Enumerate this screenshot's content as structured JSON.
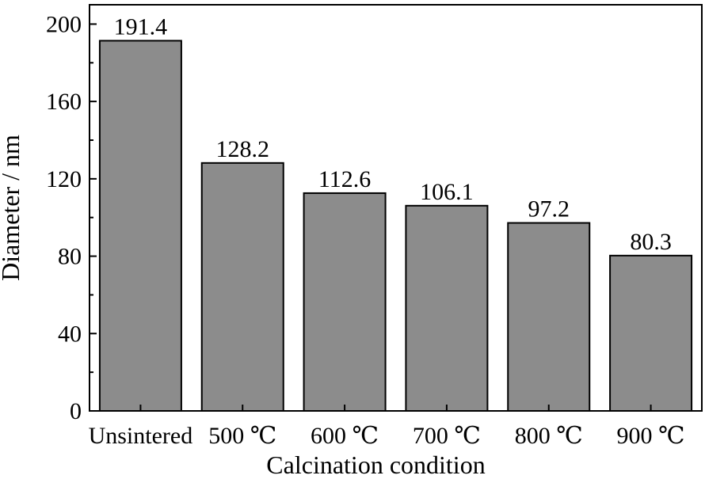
{
  "chart_data": {
    "type": "bar",
    "categories": [
      "Unsintered",
      "500 ℃",
      "600 ℃",
      "700 ℃",
      "800 ℃",
      "900 ℃"
    ],
    "values": [
      191.4,
      128.2,
      112.6,
      106.1,
      97.2,
      80.3
    ],
    "data_labels": [
      "191.4",
      "128.2",
      "112.6",
      "106.1",
      "97.2",
      "80.3"
    ],
    "title": "",
    "xlabel": "Calcination condition",
    "ylabel": "Diameter / nm",
    "ylim": [
      0,
      210
    ],
    "yticks": [
      0,
      40,
      80,
      120,
      160,
      200
    ],
    "ytick_labels": [
      "0",
      "40",
      "80",
      "120",
      "160",
      "200"
    ],
    "grid": false,
    "bar_color": "#8c8c8c",
    "edge_color": "#000000"
  }
}
